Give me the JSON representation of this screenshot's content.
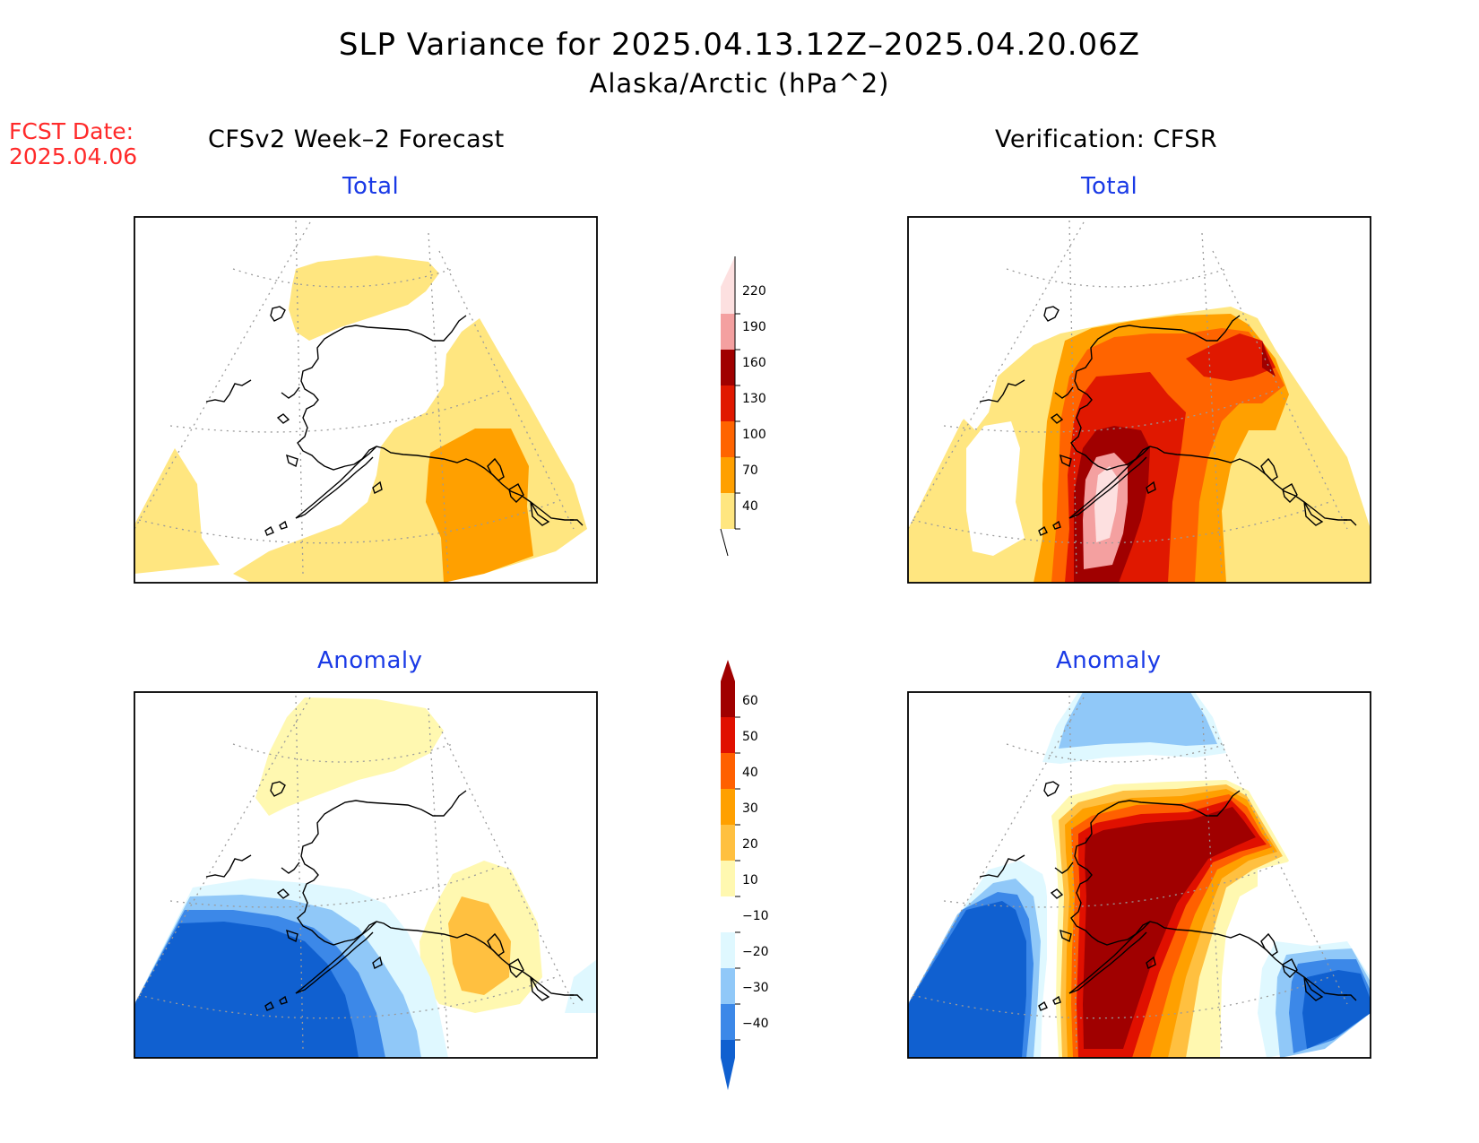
{
  "title": "SLP Variance for 2025.04.13.12Z–2025.04.20.06Z",
  "subtitle": "Alaska/Arctic (hPa^2)",
  "fcst_date": {
    "label": "FCST Date:",
    "value": "2025.04.06"
  },
  "columns": {
    "left": "CFSv2 Week–2 Forecast",
    "right": "Verification: CFSR"
  },
  "panels": {
    "top_left": "Total",
    "top_right": "Total",
    "bottom_left": "Anomaly",
    "bottom_right": "Anomaly"
  },
  "colorbars": {
    "total": {
      "labels": [
        "40",
        "70",
        "100",
        "130",
        "160",
        "190",
        "220"
      ],
      "colors": [
        "#ffe680",
        "#ffa000",
        "#ff6400",
        "#e01800",
        "#a00000",
        "#f4a0a0",
        "#fde0e0"
      ]
    },
    "anomaly": {
      "labels": [
        "−40",
        "−30",
        "−20",
        "−10",
        "10",
        "20",
        "30",
        "40",
        "50",
        "60"
      ],
      "colors": [
        "#1060d0",
        "#3c88e8",
        "#90c8f8",
        "#dff8ff",
        "#ffffff",
        "#fff8b0",
        "#ffc040",
        "#ffa000",
        "#ff6000",
        "#e01000",
        "#a00000"
      ]
    }
  }
}
